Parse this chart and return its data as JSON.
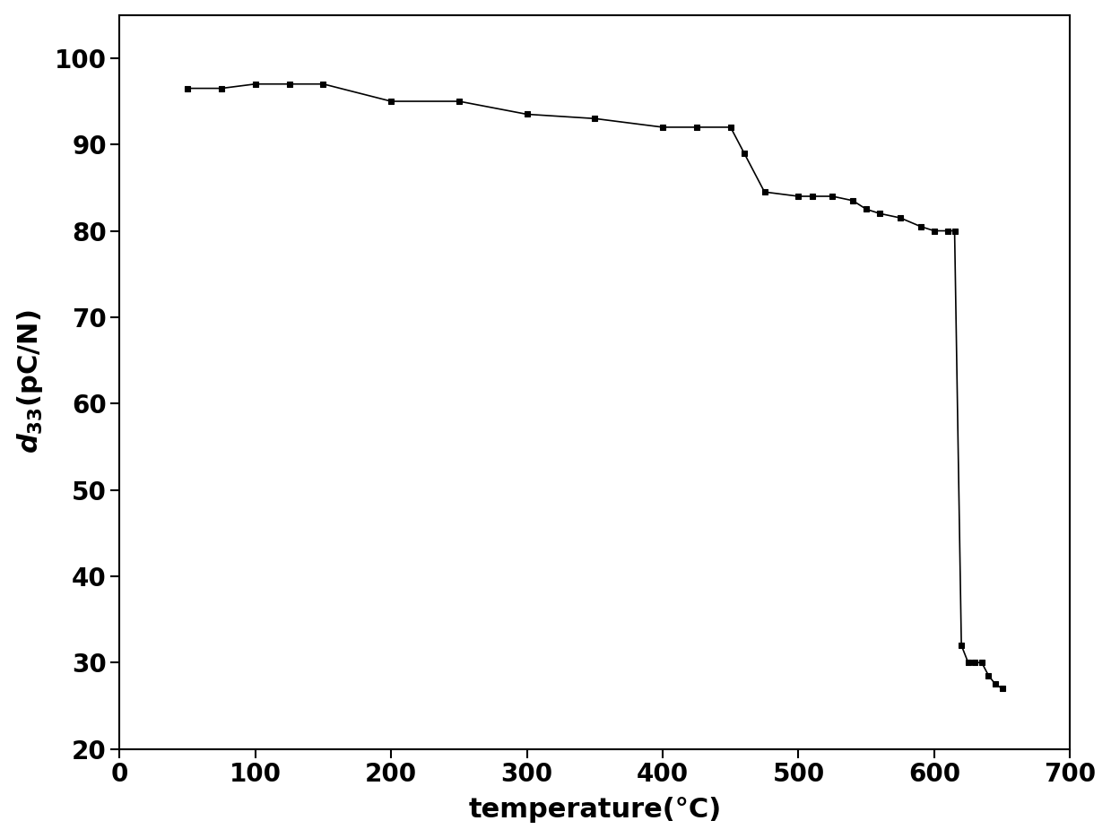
{
  "x": [
    50,
    75,
    100,
    125,
    150,
    200,
    250,
    300,
    350,
    400,
    425,
    450,
    460,
    475,
    500,
    510,
    525,
    540,
    550,
    560,
    575,
    590,
    600,
    610,
    615,
    620,
    625,
    630,
    635,
    640,
    645,
    650
  ],
  "y": [
    96.5,
    96.5,
    97.0,
    97.0,
    97.0,
    95.0,
    95.0,
    93.5,
    93.0,
    92.0,
    92.0,
    92.0,
    89.0,
    84.5,
    84.0,
    84.0,
    84.0,
    83.5,
    82.5,
    82.0,
    81.5,
    80.5,
    80.0,
    80.0,
    80.0,
    32.0,
    30.0,
    30.0,
    30.0,
    28.5,
    27.5,
    27.0
  ],
  "xlabel": "temperature(°C)",
  "ylabel": "$d_{33}$(pC/N)",
  "xlim": [
    0,
    700
  ],
  "ylim": [
    20,
    105
  ],
  "xticks": [
    0,
    100,
    200,
    300,
    400,
    500,
    600,
    700
  ],
  "yticks": [
    20,
    30,
    40,
    50,
    60,
    70,
    80,
    90,
    100
  ],
  "line_color": "#000000",
  "marker": "s",
  "marker_size": 5,
  "line_width": 1.2,
  "xlabel_fontsize": 22,
  "ylabel_fontsize": 22,
  "tick_fontsize": 20,
  "fig_width": 12.39,
  "fig_height": 9.35,
  "dpi": 100
}
